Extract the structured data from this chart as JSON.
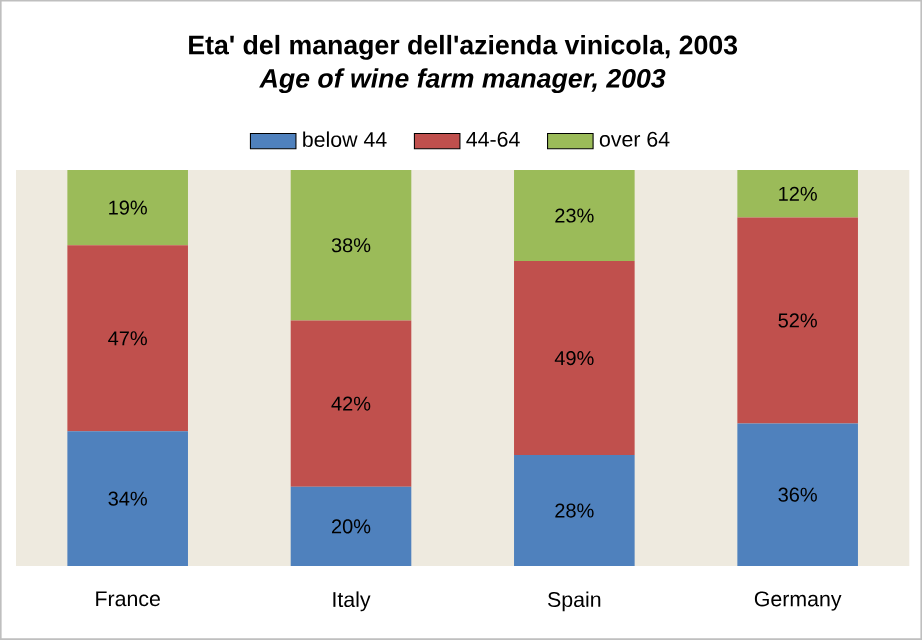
{
  "chart_data": {
    "type": "bar",
    "stacked": true,
    "title": "Eta' del manager dell'azienda vinicola, 2003",
    "subtitle": "Age of wine farm manager, 2003",
    "categories": [
      "France",
      "Italy",
      "Spain",
      "Germany"
    ],
    "legend": "top",
    "series": [
      {
        "name": "below 44",
        "color": "#4f81bd",
        "values": [
          34,
          20,
          28,
          36
        ],
        "value_labels": [
          "34%",
          "20%",
          "28%",
          "36%"
        ]
      },
      {
        "name": "44-64",
        "color": "#c0504d",
        "values": [
          47,
          42,
          49,
          52
        ],
        "value_labels": [
          "47%",
          "42%",
          "49%",
          "52%"
        ]
      },
      {
        "name": "over 64",
        "color": "#9bbb59",
        "values": [
          19,
          38,
          23,
          12
        ],
        "value_labels": [
          "19%",
          "38%",
          "23%",
          "12%"
        ]
      }
    ]
  }
}
